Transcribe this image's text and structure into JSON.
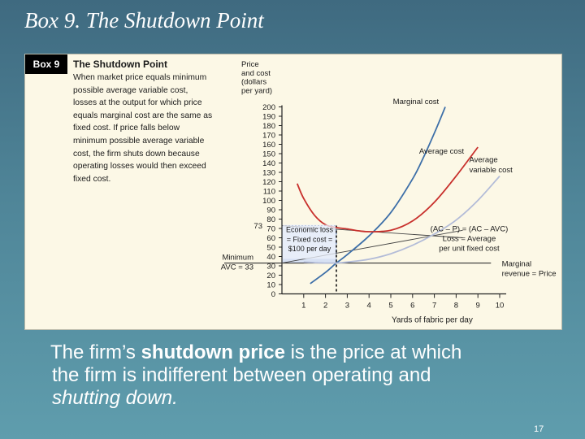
{
  "slide": {
    "title": "Box 9.  The Shutdown Point",
    "caption_pre": "The firm’s ",
    "caption_bold": "shutdown price",
    "caption_post": " is the price at which",
    "caption_line2": "the firm is indifferent between operating and",
    "caption_line3": "shutting down.",
    "page_number": "17"
  },
  "box": {
    "tag": "Box 9",
    "heading": "The Shutdown Point",
    "body": "When market price equals minimum possible average variable cost, losses at the output for which price equals marginal cost are the same as fixed cost. If price falls below minimum possible average variable cost, the firm shuts down because operating losses would then exceed fixed cost."
  },
  "chart_data": {
    "type": "line",
    "ylabel_lines": [
      "Price",
      "and cost",
      "(dollars",
      "per yard)"
    ],
    "xlabel": "Yards of fabric per day",
    "xlim": [
      0,
      10.3
    ],
    "ylim": [
      0,
      200
    ],
    "x_ticks": [
      1,
      2,
      3,
      4,
      5,
      6,
      7,
      8,
      9,
      10
    ],
    "y_ticks": [
      0,
      10,
      20,
      30,
      40,
      50,
      60,
      70,
      80,
      90,
      100,
      110,
      120,
      130,
      140,
      150,
      160,
      170,
      180,
      190,
      200
    ],
    "series": [
      {
        "name": "Marginal cost",
        "color": "#3d6fa8",
        "x": [
          1.3,
          2,
          2.5,
          3,
          4,
          5,
          6,
          6.5,
          7,
          7.5
        ],
        "y": [
          11,
          23,
          33,
          42,
          62,
          87,
          123,
          146,
          172,
          200
        ]
      },
      {
        "name": "Average cost",
        "color": "#c8302c",
        "x": [
          0.7,
          1,
          1.5,
          2,
          2.5,
          3,
          3.5,
          4,
          5,
          6,
          7,
          8,
          9
        ],
        "y": [
          118,
          102,
          84,
          74,
          71,
          69.5,
          67.5,
          66.5,
          68,
          78,
          98,
          126,
          157
        ]
      },
      {
        "name": "Average variable cost",
        "color": "#b3bcd8",
        "x": [
          1,
          2,
          2.5,
          3,
          4,
          5,
          6,
          7,
          8,
          9,
          10
        ],
        "y": [
          34,
          33,
          33,
          34,
          37,
          43,
          52,
          64,
          79,
          100,
          126
        ]
      }
    ],
    "reference_lines": [
      {
        "label_lines": [
          "Marginal",
          "revenue = Price"
        ],
        "y": 33
      },
      {
        "label_lines": [
          "(AC – P) = (AC – AVC)",
          "Loss = Average",
          "per unit fixed cost"
        ],
        "y": 73
      }
    ],
    "annotations": {
      "price_73": "73",
      "min_avc_lines": [
        "Minimum",
        "AVC = 33"
      ],
      "economic_loss_lines": [
        "Economic loss",
        "= Fixed cost =",
        "$100 per day"
      ]
    }
  }
}
